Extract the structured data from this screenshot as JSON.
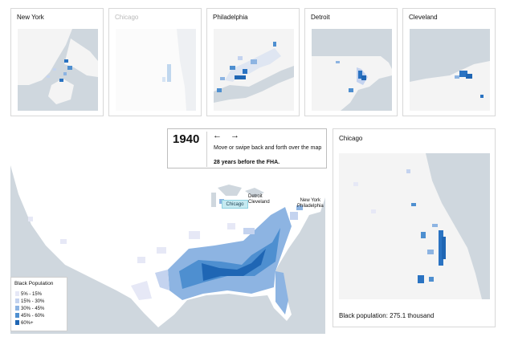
{
  "city_cards": [
    {
      "name": "New York",
      "active": true
    },
    {
      "name": "Chicago",
      "active": false
    },
    {
      "name": "Philadelphia",
      "active": true
    },
    {
      "name": "Detroit",
      "active": true
    },
    {
      "name": "Cleveland",
      "active": true
    }
  ],
  "timeline": {
    "year": "1940",
    "arrows": "← →",
    "instruction": "Move or swipe back and forth over the map",
    "note": "28 years before the FHA."
  },
  "map_labels": {
    "chicago": "Chicago",
    "detroit_cleveland": "Detroit\nCleveland",
    "ny_phil": "New York\nPhiladelphia"
  },
  "legend": {
    "title": "Black Population",
    "items": [
      {
        "label": "5%   - 15%",
        "color": "#e6e8f6"
      },
      {
        "label": "15% - 30%",
        "color": "#c4d3ef"
      },
      {
        "label": "30% - 45%",
        "color": "#8db4e2"
      },
      {
        "label": "45% - 60%",
        "color": "#4e8fd0"
      },
      {
        "label": "60%+",
        "color": "#1f66b4"
      }
    ]
  },
  "detail": {
    "title": "Chicago",
    "population": "Black population: 275.1 thousand"
  },
  "colors": {
    "water": "#cfd7de",
    "land": "#f4f4f4",
    "blue": "#2a73c2",
    "chip": "#c6eaf1"
  }
}
